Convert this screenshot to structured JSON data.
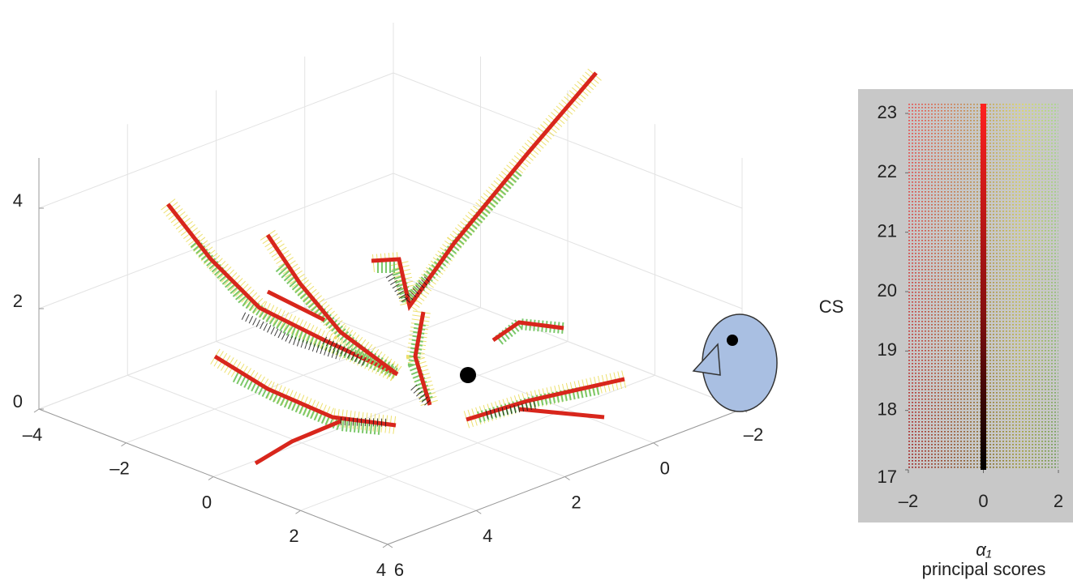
{
  "chart_data": [
    {
      "type": "scatter3d",
      "xlim": [
        -4,
        4
      ],
      "ylim": [
        -2,
        6
      ],
      "zlim": [
        0,
        5
      ],
      "xticks": [
        {
          "value": -4,
          "label": "–4"
        },
        {
          "value": -2,
          "label": "–2"
        },
        0,
        2,
        4
      ],
      "yticks": [
        6,
        4,
        2,
        0,
        {
          "value": -2,
          "label": "–2"
        }
      ],
      "zticks": [
        0,
        2,
        4
      ],
      "grid": true
    },
    {
      "type": "colorbar",
      "ylabel": "CS",
      "xlabel": [
        "α₁",
        "principal scores"
      ],
      "ylim": [
        17,
        23
      ],
      "yticks": [
        17,
        18,
        19,
        20,
        21,
        22,
        23
      ],
      "xlim": [
        -2,
        2
      ],
      "xticks": [
        {
          "value": -2,
          "label": "–2"
        },
        0,
        2
      ]
    }
  ]
}
